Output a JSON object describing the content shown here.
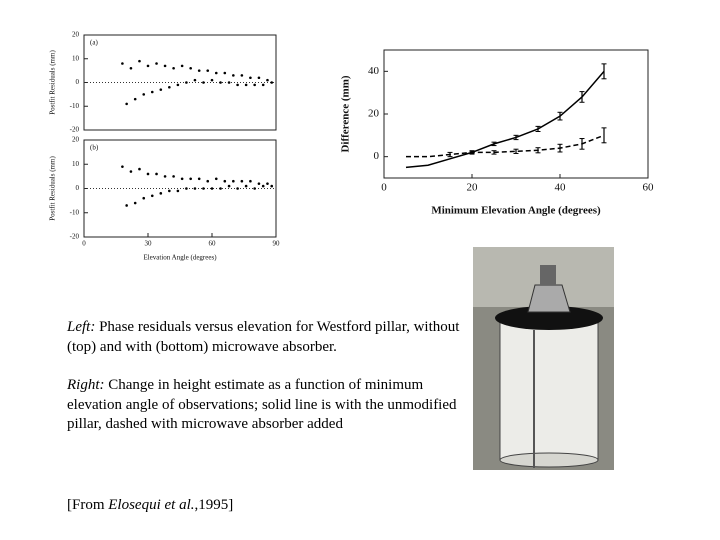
{
  "chart_data": [
    {
      "type": "scatter",
      "label": "(a)",
      "ylabel": "Postfit Residuals (mm)",
      "x": [
        18,
        20,
        22,
        24,
        26,
        28,
        30,
        32,
        34,
        36,
        38,
        40,
        42,
        44,
        46,
        48,
        50,
        52,
        54,
        56,
        58,
        60,
        62,
        64,
        66,
        68,
        70,
        72,
        74,
        76,
        78,
        80,
        82,
        84,
        86,
        88
      ],
      "values": [
        8,
        -9,
        6,
        -7,
        9,
        -5,
        7,
        -4,
        8,
        -3,
        7,
        -2,
        6,
        -1,
        7,
        0,
        6,
        1,
        5,
        0,
        5,
        1,
        4,
        0,
        4,
        0,
        3,
        -1,
        3,
        -1,
        2,
        -1,
        2,
        -1,
        1,
        0
      ],
      "xlim": [
        0,
        90
      ],
      "ylim": [
        -20,
        20
      ],
      "yticks": [
        -20,
        -10,
        0,
        10,
        20
      ],
      "ref_line": 0,
      "color": "#000000"
    },
    {
      "type": "scatter",
      "label": "(b)",
      "ylabel": "Postfit Residuals (mm)",
      "xlabel": "Elevation Angle (degrees)",
      "x": [
        18,
        20,
        22,
        24,
        26,
        28,
        30,
        32,
        34,
        36,
        38,
        40,
        42,
        44,
        46,
        48,
        50,
        52,
        54,
        56,
        58,
        60,
        62,
        64,
        66,
        68,
        70,
        72,
        74,
        76,
        78,
        80,
        82,
        84,
        86,
        88
      ],
      "values": [
        9,
        -7,
        7,
        -6,
        8,
        -4,
        6,
        -3,
        6,
        -2,
        5,
        -1,
        5,
        -1,
        4,
        0,
        4,
        0,
        4,
        0,
        3,
        0,
        4,
        0,
        3,
        1,
        3,
        0,
        3,
        1,
        3,
        0,
        2,
        1,
        2,
        1
      ],
      "xlim": [
        0,
        90
      ],
      "xticks": [
        0,
        30,
        60,
        90
      ],
      "ylim": [
        -20,
        20
      ],
      "yticks": [
        -20,
        -10,
        0,
        10,
        20
      ],
      "ref_line": 0,
      "color": "#000000"
    },
    {
      "type": "line",
      "ylabel": "Difference (mm)",
      "xlabel": "Minimum Elevation Angle (degrees)",
      "x": [
        5,
        10,
        15,
        20,
        25,
        30,
        35,
        40,
        45,
        50
      ],
      "series": [
        {
          "style": "solid",
          "color": "#000000",
          "values": [
            -5,
            -4,
            -1,
            2,
            6,
            9,
            13,
            19,
            28,
            40
          ],
          "errors": [
            null,
            null,
            null,
            0.5,
            0.8,
            1,
            1.2,
            1.8,
            2.5,
            3.5
          ]
        },
        {
          "style": "dashed",
          "color": "#000000",
          "values": [
            0,
            0,
            1,
            2,
            2,
            2.5,
            3,
            4,
            6,
            10
          ],
          "errors": [
            null,
            null,
            1,
            0.8,
            0.8,
            1,
            1.2,
            1.8,
            2.5,
            3.5
          ]
        }
      ],
      "xlim": [
        0,
        60
      ],
      "xticks": [
        0,
        20,
        40,
        60
      ],
      "ylim": [
        -10,
        50
      ],
      "yticks": [
        0,
        20,
        40
      ]
    }
  ],
  "caption": {
    "left": {
      "lead": "Left:",
      "text": "Phase residuals versus elevation for Westford pillar, without (top) and with (bottom) microwave absorber."
    },
    "right": {
      "lead": "Right:",
      "text": "Change in height estimate as a function of minimum elevation angle of observations; solid line is with the unmodified pillar, dashed with microwave absorber added"
    }
  },
  "citation": {
    "pre": "[From ",
    "authors": "Elosequi et al.",
    "post": ",1995]"
  }
}
